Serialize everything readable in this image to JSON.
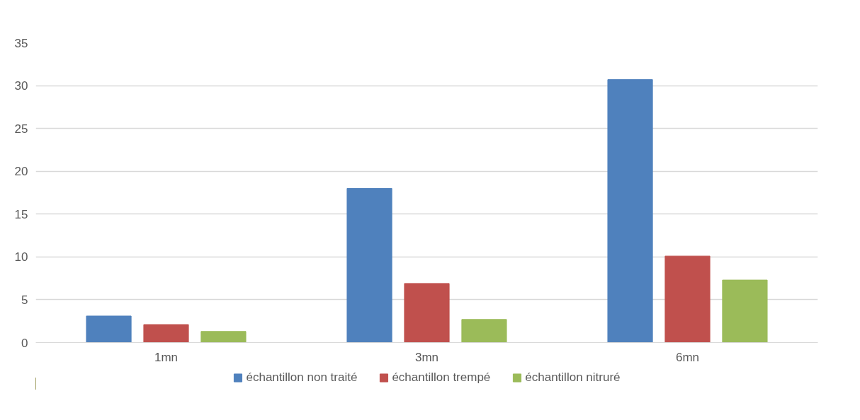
{
  "chart_data": {
    "type": "bar",
    "categories": [
      "1mn",
      "3mn",
      "6mn"
    ],
    "series": [
      {
        "name": "échantillon non traité",
        "color": "#4f81bd",
        "values": [
          3.1,
          18.0,
          30.7
        ]
      },
      {
        "name": "échantillon trempé",
        "color": "#c0504d",
        "values": [
          2.1,
          6.9,
          10.1
        ]
      },
      {
        "name": "échantillon nitruré",
        "color": "#9bbb59",
        "values": [
          1.3,
          2.7,
          7.3
        ]
      }
    ],
    "ylim": [
      0,
      35
    ],
    "yticks": [
      0,
      5,
      10,
      15,
      20,
      25,
      30,
      35
    ],
    "grid": "y",
    "legend": "bottom"
  }
}
